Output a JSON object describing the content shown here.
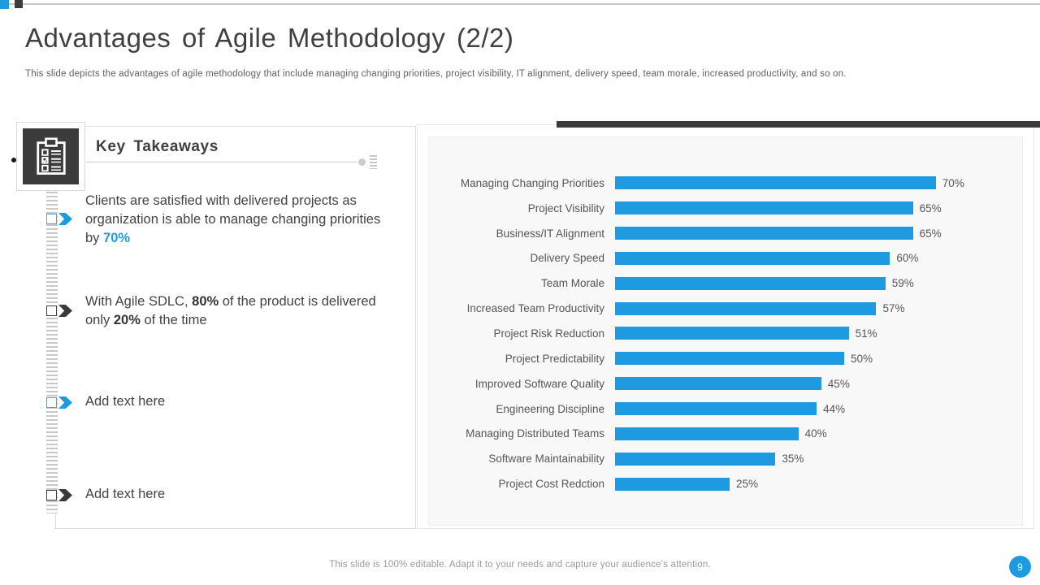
{
  "slide": {
    "title": "Advantages of Agile Methodology (2/2)",
    "subtitle": "This slide depicts the advantages of agile methodology that include managing changing priorities, project visibility, IT alignment, delivery speed, team morale, increased productivity, and so on.",
    "footer_note": "This slide is 100% editable. Adapt it to your needs and capture your audience's attention.",
    "page_number": "9"
  },
  "takeaways": {
    "heading": "Key Takeaways",
    "items": [
      {
        "pre": "Clients are satisfied with delivered projects as organization is able to manage changing priorities by ",
        "highlight": "70%"
      },
      {
        "pre": "With Agile SDLC, ",
        "bold1": "80%",
        "mid": " of the product is delivered only ",
        "bold2": "20%",
        "post": " of the time"
      },
      {
        "text": "Add text here"
      },
      {
        "text": "Add text here"
      }
    ]
  },
  "icons": {
    "takeaways_icon": "clipboard-checklist-icon"
  },
  "colors": {
    "accent_blue": "#1E9BE0",
    "accent_dark": "#3B3B3B",
    "panel_gray": "#F8F8F8"
  },
  "chart_data": {
    "type": "bar",
    "orientation": "horizontal",
    "title": "",
    "xlabel": "",
    "ylabel": "",
    "grid": false,
    "legend": false,
    "xlim": [
      0,
      80
    ],
    "categories": [
      "Managing Changing Priorities",
      "Project Visibility",
      "Business/IT Alignment",
      "Delivery Speed",
      "Team Morale",
      "Increased Team Productivity",
      "Project Risk Reduction",
      "Project Predictability",
      "Improved Software Quality",
      "Engineering Discipline",
      "Managing Distributed Teams",
      "Software Maintainability",
      "Project Cost Redction"
    ],
    "values": [
      70,
      65,
      65,
      60,
      59,
      57,
      51,
      50,
      45,
      44,
      40,
      35,
      25
    ],
    "value_labels": [
      "70%",
      "65%",
      "65%",
      "60%",
      "59%",
      "57%",
      "51%",
      "50%",
      "45%",
      "44%",
      "40%",
      "35%",
      "25%"
    ],
    "bar_color": "#1E9BE0"
  }
}
